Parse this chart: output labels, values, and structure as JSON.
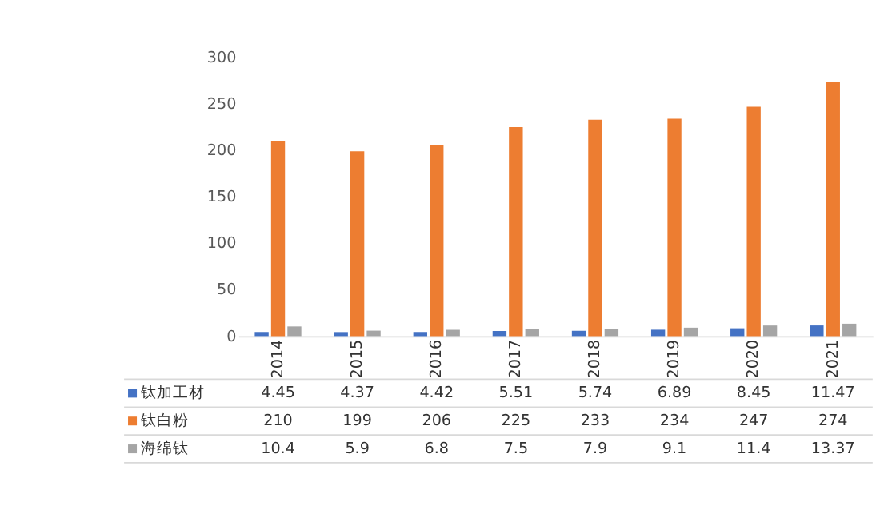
{
  "chart_data": {
    "type": "bar",
    "categories": [
      "2014",
      "2015",
      "2016",
      "2017",
      "2018",
      "2019",
      "2020",
      "2021"
    ],
    "series": [
      {
        "name": "钛加工材",
        "color": "#4472c4",
        "values": [
          4.45,
          4.37,
          4.42,
          5.51,
          5.74,
          6.89,
          8.45,
          11.47
        ]
      },
      {
        "name": "钛白粉",
        "color": "#ed7d31",
        "values": [
          210,
          199,
          206,
          225,
          233,
          234,
          247,
          274
        ]
      },
      {
        "name": "海绵钛",
        "color": "#a5a5a5",
        "values": [
          10.4,
          5.9,
          6.8,
          7.5,
          7.9,
          9.1,
          11.4,
          13.37
        ]
      }
    ],
    "ylim": [
      0,
      300
    ],
    "yticks": [
      0,
      50,
      100,
      150,
      200,
      250,
      300
    ],
    "grid": false,
    "data_labels": true,
    "legend": "bottom"
  }
}
